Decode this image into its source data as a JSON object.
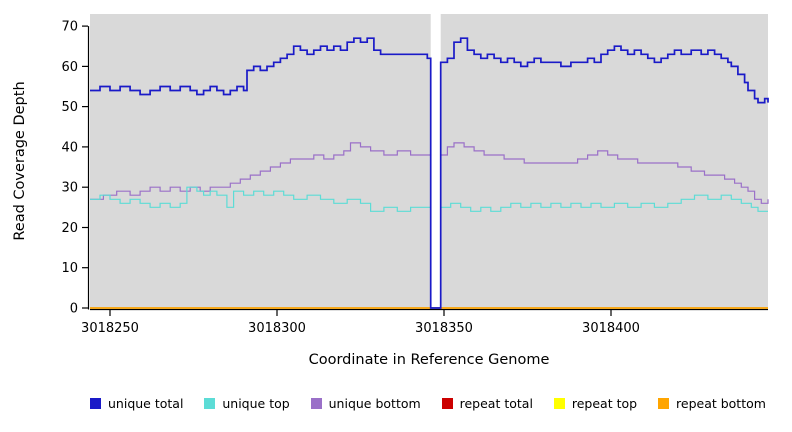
{
  "chart_data": {
    "type": "line",
    "line_style": "step",
    "title": "",
    "xlabel": "Coordinate in Reference Genome",
    "ylabel": "Read Coverage Depth",
    "xlim": [
      3018244,
      3018447
    ],
    "ylim": [
      0,
      73
    ],
    "x_ticks": [
      3018250,
      3018300,
      3018350,
      3018400
    ],
    "y_ticks": [
      0,
      10,
      20,
      30,
      40,
      50,
      60,
      70
    ],
    "plot_bg": "#d9d9d9",
    "grid": false,
    "legend_position": "bottom",
    "gap_region": {
      "x_start": 3018346,
      "x_end": 3018349
    },
    "series": [
      {
        "name": "repeat total",
        "color": "#cc0000",
        "width": 1.2,
        "points": [
          [
            3018244,
            0
          ],
          [
            3018447,
            0
          ]
        ]
      },
      {
        "name": "repeat top",
        "color": "#ffff00",
        "width": 1.2,
        "points": [
          [
            3018244,
            0
          ],
          [
            3018447,
            0
          ]
        ]
      },
      {
        "name": "repeat bottom",
        "color": "#ffa500",
        "width": 1.5,
        "points": [
          [
            3018244,
            0
          ],
          [
            3018447,
            0
          ]
        ]
      },
      {
        "name": "unique bottom",
        "color": "#9a70c8",
        "width": 1.2,
        "points": [
          [
            3018244,
            27
          ],
          [
            3018248,
            28
          ],
          [
            3018252,
            29
          ],
          [
            3018256,
            28
          ],
          [
            3018259,
            29
          ],
          [
            3018262,
            30
          ],
          [
            3018265,
            29
          ],
          [
            3018268,
            30
          ],
          [
            3018271,
            29
          ],
          [
            3018274,
            30
          ],
          [
            3018277,
            29
          ],
          [
            3018280,
            30
          ],
          [
            3018283,
            30
          ],
          [
            3018286,
            31
          ],
          [
            3018289,
            32
          ],
          [
            3018292,
            33
          ],
          [
            3018295,
            34
          ],
          [
            3018298,
            35
          ],
          [
            3018301,
            36
          ],
          [
            3018304,
            37
          ],
          [
            3018308,
            37
          ],
          [
            3018311,
            38
          ],
          [
            3018314,
            37
          ],
          [
            3018317,
            38
          ],
          [
            3018320,
            39
          ],
          [
            3018322,
            41
          ],
          [
            3018325,
            40
          ],
          [
            3018328,
            39
          ],
          [
            3018332,
            38
          ],
          [
            3018336,
            39
          ],
          [
            3018340,
            38
          ],
          [
            3018345,
            38
          ],
          [
            3018346,
            0
          ],
          [
            3018349,
            38
          ],
          [
            3018351,
            40
          ],
          [
            3018353,
            41
          ],
          [
            3018356,
            40
          ],
          [
            3018359,
            39
          ],
          [
            3018362,
            38
          ],
          [
            3018365,
            38
          ],
          [
            3018368,
            37
          ],
          [
            3018371,
            37
          ],
          [
            3018374,
            36
          ],
          [
            3018378,
            36
          ],
          [
            3018382,
            36
          ],
          [
            3018386,
            36
          ],
          [
            3018390,
            37
          ],
          [
            3018393,
            38
          ],
          [
            3018396,
            39
          ],
          [
            3018399,
            38
          ],
          [
            3018402,
            37
          ],
          [
            3018405,
            37
          ],
          [
            3018408,
            36
          ],
          [
            3018412,
            36
          ],
          [
            3018416,
            36
          ],
          [
            3018420,
            35
          ],
          [
            3018424,
            34
          ],
          [
            3018428,
            33
          ],
          [
            3018431,
            33
          ],
          [
            3018434,
            32
          ],
          [
            3018437,
            31
          ],
          [
            3018439,
            30
          ],
          [
            3018441,
            29
          ],
          [
            3018443,
            27
          ],
          [
            3018445,
            26
          ],
          [
            3018447,
            27
          ]
        ]
      },
      {
        "name": "unique top",
        "color": "#5cdcd6",
        "width": 1.2,
        "points": [
          [
            3018244,
            27
          ],
          [
            3018247,
            28
          ],
          [
            3018250,
            27
          ],
          [
            3018253,
            26
          ],
          [
            3018256,
            27
          ],
          [
            3018259,
            26
          ],
          [
            3018262,
            25
          ],
          [
            3018265,
            26
          ],
          [
            3018268,
            25
          ],
          [
            3018271,
            26
          ],
          [
            3018273,
            30
          ],
          [
            3018276,
            29
          ],
          [
            3018278,
            28
          ],
          [
            3018280,
            29
          ],
          [
            3018282,
            28
          ],
          [
            3018285,
            25
          ],
          [
            3018287,
            29
          ],
          [
            3018290,
            28
          ],
          [
            3018293,
            29
          ],
          [
            3018296,
            28
          ],
          [
            3018299,
            29
          ],
          [
            3018302,
            28
          ],
          [
            3018305,
            27
          ],
          [
            3018309,
            28
          ],
          [
            3018313,
            27
          ],
          [
            3018317,
            26
          ],
          [
            3018321,
            27
          ],
          [
            3018325,
            26
          ],
          [
            3018328,
            24
          ],
          [
            3018332,
            25
          ],
          [
            3018336,
            24
          ],
          [
            3018340,
            25
          ],
          [
            3018345,
            25
          ],
          [
            3018346,
            0
          ],
          [
            3018349,
            25
          ],
          [
            3018352,
            26
          ],
          [
            3018355,
            25
          ],
          [
            3018358,
            24
          ],
          [
            3018361,
            25
          ],
          [
            3018364,
            24
          ],
          [
            3018367,
            25
          ],
          [
            3018370,
            26
          ],
          [
            3018373,
            25
          ],
          [
            3018376,
            26
          ],
          [
            3018379,
            25
          ],
          [
            3018382,
            26
          ],
          [
            3018385,
            25
          ],
          [
            3018388,
            26
          ],
          [
            3018391,
            25
          ],
          [
            3018394,
            26
          ],
          [
            3018397,
            25
          ],
          [
            3018401,
            26
          ],
          [
            3018405,
            25
          ],
          [
            3018409,
            26
          ],
          [
            3018413,
            25
          ],
          [
            3018417,
            26
          ],
          [
            3018421,
            27
          ],
          [
            3018425,
            28
          ],
          [
            3018429,
            27
          ],
          [
            3018433,
            28
          ],
          [
            3018436,
            27
          ],
          [
            3018439,
            26
          ],
          [
            3018442,
            25
          ],
          [
            3018444,
            24
          ],
          [
            3018447,
            24
          ]
        ]
      },
      {
        "name": "unique total",
        "color": "#1a1ac8",
        "width": 1.7,
        "points": [
          [
            3018244,
            54
          ],
          [
            3018247,
            55
          ],
          [
            3018250,
            54
          ],
          [
            3018253,
            55
          ],
          [
            3018256,
            54
          ],
          [
            3018259,
            53
          ],
          [
            3018262,
            54
          ],
          [
            3018265,
            55
          ],
          [
            3018268,
            54
          ],
          [
            3018271,
            55
          ],
          [
            3018274,
            54
          ],
          [
            3018276,
            53
          ],
          [
            3018278,
            54
          ],
          [
            3018280,
            55
          ],
          [
            3018282,
            54
          ],
          [
            3018284,
            53
          ],
          [
            3018286,
            54
          ],
          [
            3018288,
            55
          ],
          [
            3018290,
            54
          ],
          [
            3018291,
            59
          ],
          [
            3018293,
            60
          ],
          [
            3018295,
            59
          ],
          [
            3018297,
            60
          ],
          [
            3018299,
            61
          ],
          [
            3018301,
            62
          ],
          [
            3018303,
            63
          ],
          [
            3018305,
            65
          ],
          [
            3018307,
            64
          ],
          [
            3018309,
            63
          ],
          [
            3018311,
            64
          ],
          [
            3018313,
            65
          ],
          [
            3018315,
            64
          ],
          [
            3018317,
            65
          ],
          [
            3018319,
            64
          ],
          [
            3018321,
            66
          ],
          [
            3018323,
            67
          ],
          [
            3018325,
            66
          ],
          [
            3018327,
            67
          ],
          [
            3018329,
            64
          ],
          [
            3018331,
            63
          ],
          [
            3018336,
            63
          ],
          [
            3018341,
            63
          ],
          [
            3018345,
            62
          ],
          [
            3018346,
            0
          ],
          [
            3018349,
            61
          ],
          [
            3018351,
            62
          ],
          [
            3018353,
            66
          ],
          [
            3018355,
            67
          ],
          [
            3018357,
            64
          ],
          [
            3018359,
            63
          ],
          [
            3018361,
            62
          ],
          [
            3018363,
            63
          ],
          [
            3018365,
            62
          ],
          [
            3018367,
            61
          ],
          [
            3018369,
            62
          ],
          [
            3018371,
            61
          ],
          [
            3018373,
            60
          ],
          [
            3018375,
            61
          ],
          [
            3018377,
            62
          ],
          [
            3018379,
            61
          ],
          [
            3018382,
            61
          ],
          [
            3018385,
            60
          ],
          [
            3018388,
            61
          ],
          [
            3018391,
            61
          ],
          [
            3018393,
            62
          ],
          [
            3018395,
            61
          ],
          [
            3018397,
            63
          ],
          [
            3018399,
            64
          ],
          [
            3018401,
            65
          ],
          [
            3018403,
            64
          ],
          [
            3018405,
            63
          ],
          [
            3018407,
            64
          ],
          [
            3018409,
            63
          ],
          [
            3018411,
            62
          ],
          [
            3018413,
            61
          ],
          [
            3018415,
            62
          ],
          [
            3018417,
            63
          ],
          [
            3018419,
            64
          ],
          [
            3018421,
            63
          ],
          [
            3018424,
            64
          ],
          [
            3018427,
            63
          ],
          [
            3018429,
            64
          ],
          [
            3018431,
            63
          ],
          [
            3018433,
            62
          ],
          [
            3018435,
            61
          ],
          [
            3018436,
            60
          ],
          [
            3018438,
            58
          ],
          [
            3018440,
            56
          ],
          [
            3018441,
            54
          ],
          [
            3018443,
            52
          ],
          [
            3018444,
            51
          ],
          [
            3018446,
            52
          ],
          [
            3018447,
            51
          ]
        ]
      }
    ],
    "legend": [
      {
        "label": "unique total",
        "color": "#1a1ac8"
      },
      {
        "label": "unique top",
        "color": "#5cdcd6"
      },
      {
        "label": "unique bottom",
        "color": "#9a70c8"
      },
      {
        "label": "repeat total",
        "color": "#cc0000"
      },
      {
        "label": "repeat top",
        "color": "#ffff00"
      },
      {
        "label": "repeat bottom",
        "color": "#ffa500"
      }
    ]
  }
}
